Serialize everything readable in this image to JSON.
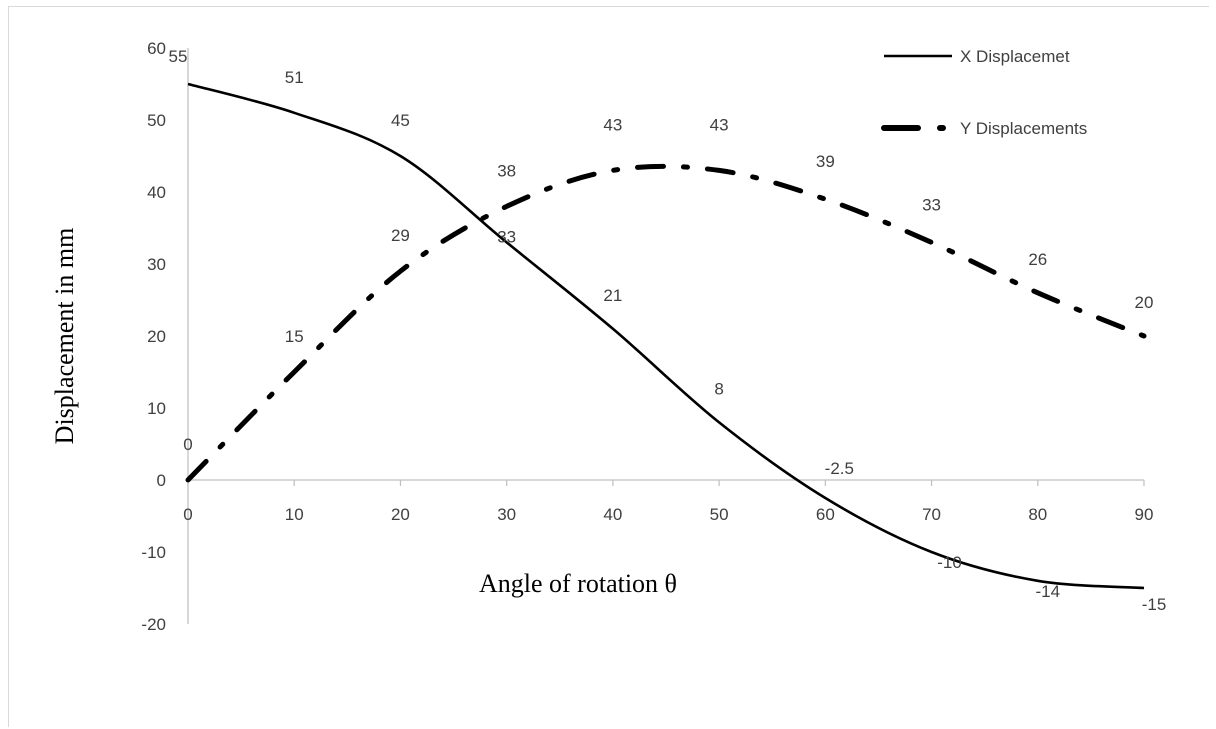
{
  "chart_data": {
    "type": "line",
    "title": "",
    "xlabel": "Angle of rotation θ",
    "ylabel": "Displacement in mm",
    "xlim": [
      0,
      90
    ],
    "ylim": [
      -20,
      60
    ],
    "xticks": [
      0,
      10,
      20,
      30,
      40,
      50,
      60,
      70,
      80,
      90
    ],
    "yticks": [
      -20,
      -10,
      0,
      10,
      20,
      30,
      40,
      50,
      60
    ],
    "grid": false,
    "legend_position": "top-right",
    "x": [
      0,
      10,
      20,
      30,
      40,
      50,
      60,
      70,
      80,
      90
    ],
    "series": [
      {
        "name": "X Displacemet",
        "style": "solid",
        "color": "#000000",
        "values": [
          55,
          51,
          45,
          33,
          21,
          8,
          -2.5,
          -10,
          -14,
          -15
        ],
        "labels": [
          "55",
          "51",
          "45",
          "33",
          "21",
          "8",
          "-2.5",
          "-10",
          "-14",
          "-15"
        ]
      },
      {
        "name": "Y Displacements",
        "style": "dash-dot",
        "color": "#000000",
        "values": [
          0,
          15,
          29,
          38,
          43,
          43,
          39,
          33,
          26,
          20
        ],
        "labels": [
          "0",
          "15",
          "29",
          "38",
          "43",
          "43",
          "39",
          "33",
          "26",
          "20"
        ]
      }
    ]
  }
}
